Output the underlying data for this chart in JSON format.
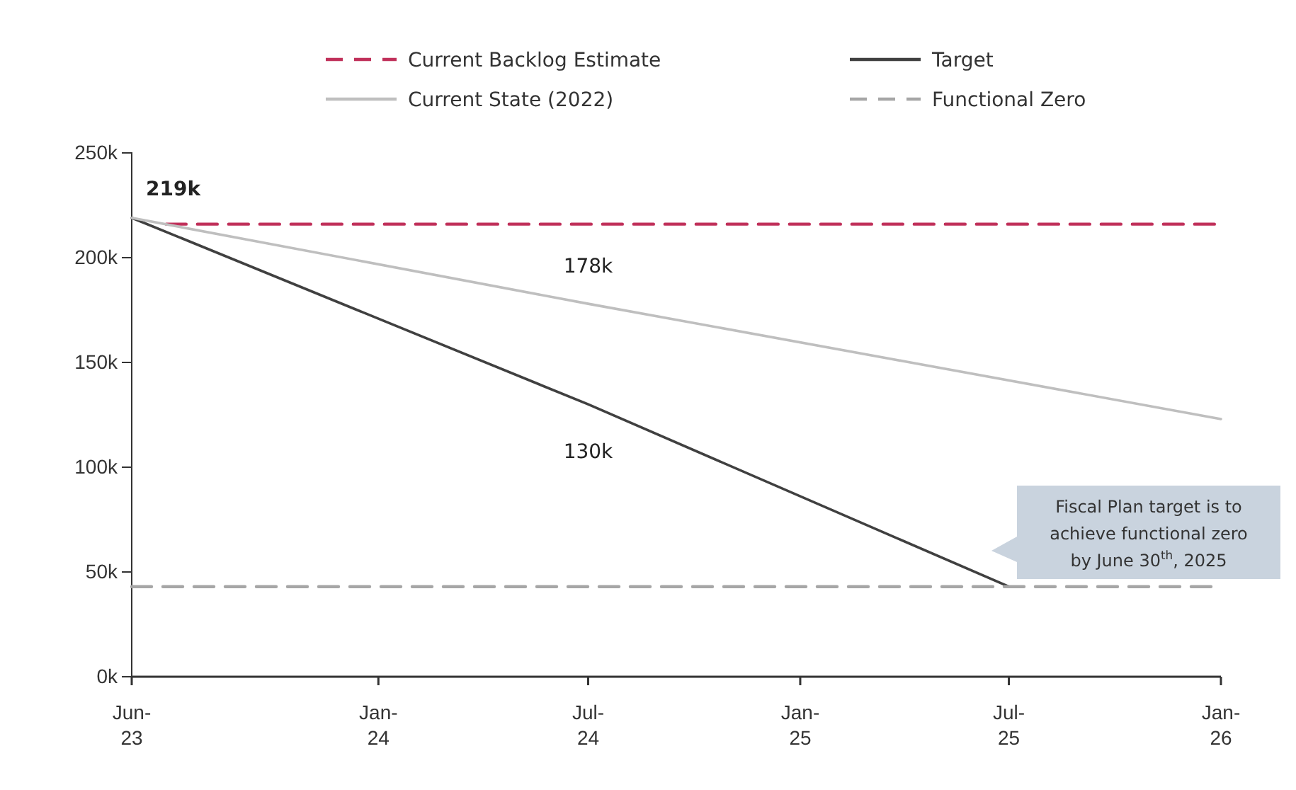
{
  "chart_data": {
    "type": "line",
    "xlim": [
      "2023-06",
      "2026-01"
    ],
    "xticks": [
      {
        "value": "2023-06",
        "label": "Jun-23"
      },
      {
        "value": "2024-01",
        "label": "Jan-24"
      },
      {
        "value": "2024-07",
        "label": "Jul-24"
      },
      {
        "value": "2025-01",
        "label": "Jan-25"
      },
      {
        "value": "2025-07",
        "label": "Jul-25"
      },
      {
        "value": "2026-01",
        "label": "Jan-26"
      }
    ],
    "ylim": [
      0,
      250
    ],
    "yticks": [
      {
        "value": 0,
        "label": "0k"
      },
      {
        "value": 50,
        "label": "50k"
      },
      {
        "value": 100,
        "label": "100k"
      },
      {
        "value": 150,
        "label": "150k"
      },
      {
        "value": 200,
        "label": "200k"
      },
      {
        "value": 250,
        "label": "250k"
      }
    ],
    "series": [
      {
        "name": "Current Backlog Estimate",
        "color": "#c0305a",
        "line_style": "dashed",
        "x": [
          "2023-07",
          "2026-01"
        ],
        "values": [
          216,
          216
        ]
      },
      {
        "name": "Target",
        "color": "#404040",
        "line_style": "solid",
        "x": [
          "2023-06",
          "2024-07",
          "2025-07"
        ],
        "values": [
          219,
          130,
          43
        ],
        "value_labels": [
          "219k",
          "130k",
          null
        ]
      },
      {
        "name": "Current State (2022)",
        "color": "#bfbfbf",
        "line_style": "solid",
        "x": [
          "2023-06",
          "2024-07",
          "2026-01"
        ],
        "values": [
          219,
          178,
          123
        ],
        "value_labels": [
          null,
          "178k",
          null
        ]
      },
      {
        "name": "Functional Zero",
        "color": "#a6a6a6",
        "line_style": "dashed",
        "x": [
          "2023-06",
          "2026-01"
        ],
        "values": [
          43,
          43
        ]
      }
    ],
    "legend": "top",
    "grid": false,
    "marker": "none",
    "annotations": [
      "Fiscal Plan target is to achieve functional zero by June 30$^{th}$, 2025"
    ]
  }
}
